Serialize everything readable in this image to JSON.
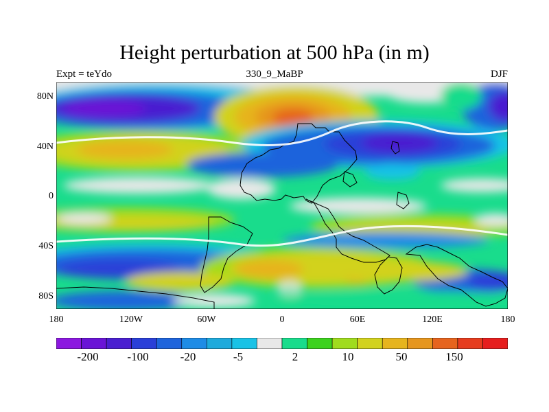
{
  "title": "Height perturbation at 500 hPa (in m)",
  "left_label": "Expt = teYdo",
  "center_label": "330_9_MaBP",
  "right_label": "DJF",
  "lat_ticks": [
    "80N",
    "40N",
    "0",
    "40S",
    "80S"
  ],
  "lon_ticks": [
    "180",
    "120W",
    "60W",
    "0",
    "60E",
    "120E",
    "180"
  ],
  "colorbar": {
    "colors": [
      "#8c18e0",
      "#6a14d6",
      "#4a1fd0",
      "#2a3fd8",
      "#1e64dc",
      "#1e8ce6",
      "#1eaadc",
      "#19c2e6",
      "#e8e8e8",
      "#19dc8c",
      "#3cd21e",
      "#a0dc1e",
      "#d2d21e",
      "#e6b41e",
      "#e6961e",
      "#e6641e",
      "#e63c1e",
      "#e61e1e"
    ],
    "labels": [
      "-200",
      "-100",
      "-20",
      "-5",
      "2",
      "10",
      "50",
      "150"
    ]
  },
  "chart_data": {
    "type": "heatmap",
    "title": "Height perturbation at 500 hPa (in m)",
    "variable": "500 hPa height perturbation",
    "units": "m",
    "x_range": [
      -180,
      180
    ],
    "y_range": [
      -90,
      90
    ],
    "contour_levels": [
      "-200",
      "-100",
      "-20",
      "-5",
      "2",
      "10",
      "50",
      "150"
    ]
  }
}
